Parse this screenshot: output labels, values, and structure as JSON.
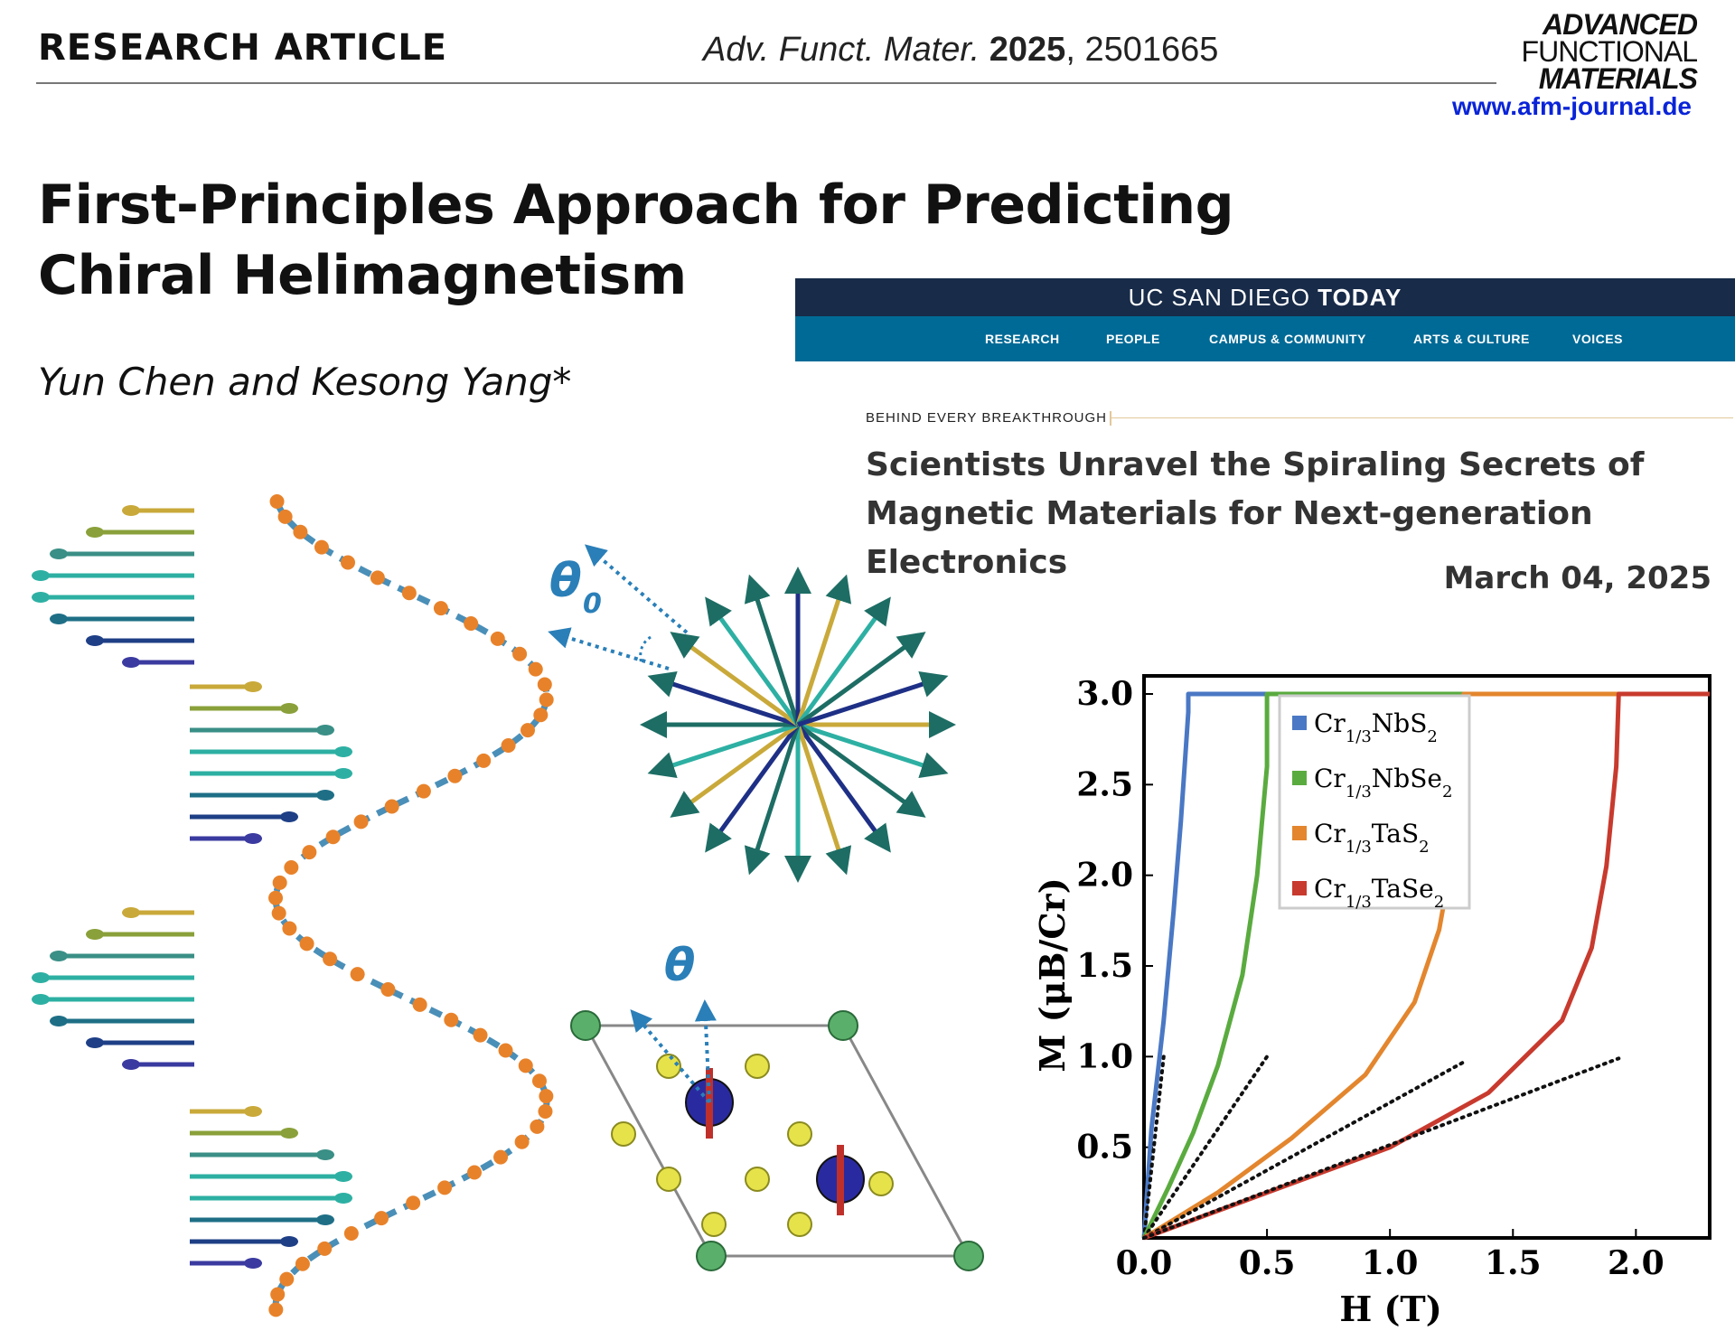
{
  "journal": {
    "article_type": "RESEARCH ARTICLE",
    "citation_journal": "Adv. Funct. Mater.",
    "citation_year": "2025",
    "citation_id": ", 2501665",
    "logo_line1": "ADVANCED",
    "logo_line2": "FUNCTIONAL",
    "logo_line3": "MATERIALS",
    "url": "www.afm-journal.de"
  },
  "paper": {
    "title": "First-Principles Approach for Predicting Chiral Helimagnetism",
    "authors": "Yun Chen and Kesong Yang*"
  },
  "news": {
    "brand_plain": "UC SAN DIEGO ",
    "brand_bold": "TODAY",
    "nav": [
      "RESEARCH",
      "PEOPLE",
      "CAMPUS & COMMUNITY",
      "ARTS & CULTURE",
      "VOICES"
    ],
    "kicker": "BEHIND EVERY BREAKTHROUGH",
    "headline": "Scientists Unravel the Spiraling Secrets of Magnetic Materials for Next-generation Electronics",
    "date": "March 04, 2025"
  },
  "figure": {
    "theta0_label": "θ",
    "theta0_sub": "0",
    "theta_label": "θ"
  },
  "chart_data": {
    "type": "line",
    "xlabel": "H (T)",
    "ylabel": "M (μB/Cr)",
    "xlim": [
      0,
      2.3
    ],
    "ylim": [
      0,
      3.0
    ],
    "xticks": [
      "0.0",
      "0.5",
      "1.0",
      "1.5",
      "2.0"
    ],
    "yticks": [
      "0.5",
      "1.0",
      "1.5",
      "2.0",
      "2.5",
      "3.0"
    ],
    "legend_position": "top-center",
    "grid": false,
    "series": [
      {
        "name": "Cr1/3NbS2",
        "base": "Cr",
        "sub1": "1/3",
        "mid": "NbS",
        "sub2": "2",
        "color": "#4a78c4",
        "x": [
          0,
          0.03,
          0.08,
          0.12,
          0.15,
          0.17,
          0.18,
          0.18,
          2.3
        ],
        "y": [
          0,
          0.6,
          1.2,
          1.8,
          2.3,
          2.7,
          2.9,
          3.0,
          3.0
        ],
        "tangent": [
          [
            0,
            0
          ],
          [
            0.08,
            1.0
          ]
        ]
      },
      {
        "name": "Cr1/3NbSe2",
        "base": "Cr",
        "sub1": "1/3",
        "mid": "NbSe",
        "sub2": "2",
        "color": "#5aab3f",
        "x": [
          0,
          0.1,
          0.2,
          0.3,
          0.4,
          0.46,
          0.5,
          0.5,
          2.3
        ],
        "y": [
          0,
          0.28,
          0.58,
          0.95,
          1.45,
          2.0,
          2.6,
          3.0,
          3.0
        ],
        "tangent": [
          [
            0,
            0
          ],
          [
            0.5,
            1.0
          ]
        ]
      },
      {
        "name": "Cr1/3TaS2",
        "base": "Cr",
        "sub1": "1/3",
        "mid": "TaS",
        "sub2": "2",
        "color": "#e3862e",
        "x": [
          0,
          0.3,
          0.6,
          0.9,
          1.1,
          1.2,
          1.26,
          1.29,
          1.3,
          2.3
        ],
        "y": [
          0,
          0.25,
          0.55,
          0.9,
          1.3,
          1.7,
          2.15,
          2.6,
          3.0,
          3.0
        ],
        "tangent": [
          [
            0,
            0
          ],
          [
            1.3,
            0.97
          ]
        ]
      },
      {
        "name": "Cr1/3TaSe2",
        "base": "Cr",
        "sub1": "1/3",
        "mid": "TaSe",
        "sub2": "2",
        "color": "#c83a2e",
        "x": [
          0,
          0.5,
          1.0,
          1.4,
          1.7,
          1.82,
          1.88,
          1.92,
          1.93,
          2.3
        ],
        "y": [
          0,
          0.25,
          0.5,
          0.8,
          1.2,
          1.6,
          2.05,
          2.6,
          3.0,
          3.0
        ],
        "tangent": [
          [
            0,
            0
          ],
          [
            1.93,
            0.99
          ]
        ]
      }
    ]
  },
  "colors": {
    "navy": "#182b49",
    "ucsd_blue": "#006a96",
    "link_blue": "#0a24d8",
    "helix_dot": "#e8822a",
    "helix_dash": "#4a8fb8",
    "arrow_teal": "#1f5f5a",
    "annot_blue": "#2a7fb8"
  }
}
